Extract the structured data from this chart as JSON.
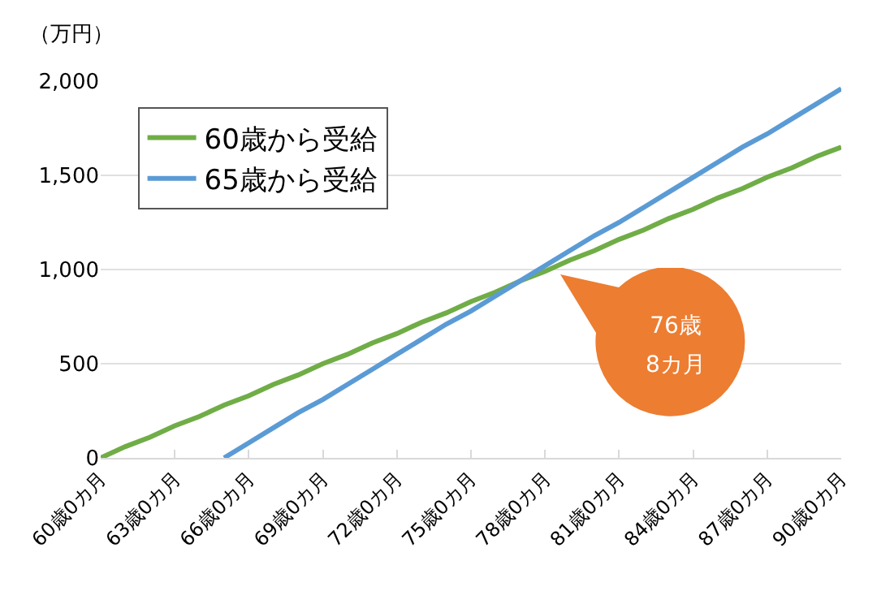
{
  "chart_data": {
    "type": "line",
    "ylabel": "（万円）",
    "categories": [
      "60歳0カ月",
      null,
      null,
      "63歳0カ月",
      null,
      null,
      "66歳0カ月",
      null,
      null,
      "69歳0カ月",
      null,
      null,
      "72歳0カ月",
      null,
      null,
      "75歳0カ月",
      null,
      null,
      "78歳0カ月",
      null,
      null,
      "81歳0カ月",
      null,
      null,
      "84歳0カ月",
      null,
      null,
      "87歳0カ月",
      null,
      null,
      "90歳0カ月"
    ],
    "ylim": [
      0,
      2000
    ],
    "yticks": [
      {
        "value": 0,
        "label": "0"
      },
      {
        "value": 500,
        "label": "500"
      },
      {
        "value": 1000,
        "label": "1,000"
      },
      {
        "value": 1500,
        "label": "1,500"
      },
      {
        "value": 2000,
        "label": "2,000"
      }
    ],
    "series": [
      {
        "name": "60歳から受給",
        "color": "#70ad47",
        "values": [
          0,
          60,
          110,
          170,
          220,
          280,
          330,
          390,
          440,
          500,
          550,
          610,
          660,
          720,
          770,
          830,
          880,
          940,
          990,
          1050,
          1100,
          1160,
          1210,
          1270,
          1320,
          1380,
          1430,
          1490,
          1540,
          1600,
          1650
        ]
      },
      {
        "name": "65歳から受給",
        "color": "#5b9bd5",
        "values": [
          null,
          null,
          null,
          null,
          null,
          0,
          80,
          160,
          240,
          310,
          390,
          470,
          550,
          630,
          710,
          780,
          860,
          940,
          1020,
          1100,
          1180,
          1250,
          1330,
          1410,
          1490,
          1570,
          1650,
          1720,
          1800,
          1880,
          1960
        ]
      }
    ],
    "annotations": [
      "76歳\n8カ月"
    ],
    "grid": "y",
    "legend": "top left",
    "marker": "none",
    "line_style": "solid"
  }
}
